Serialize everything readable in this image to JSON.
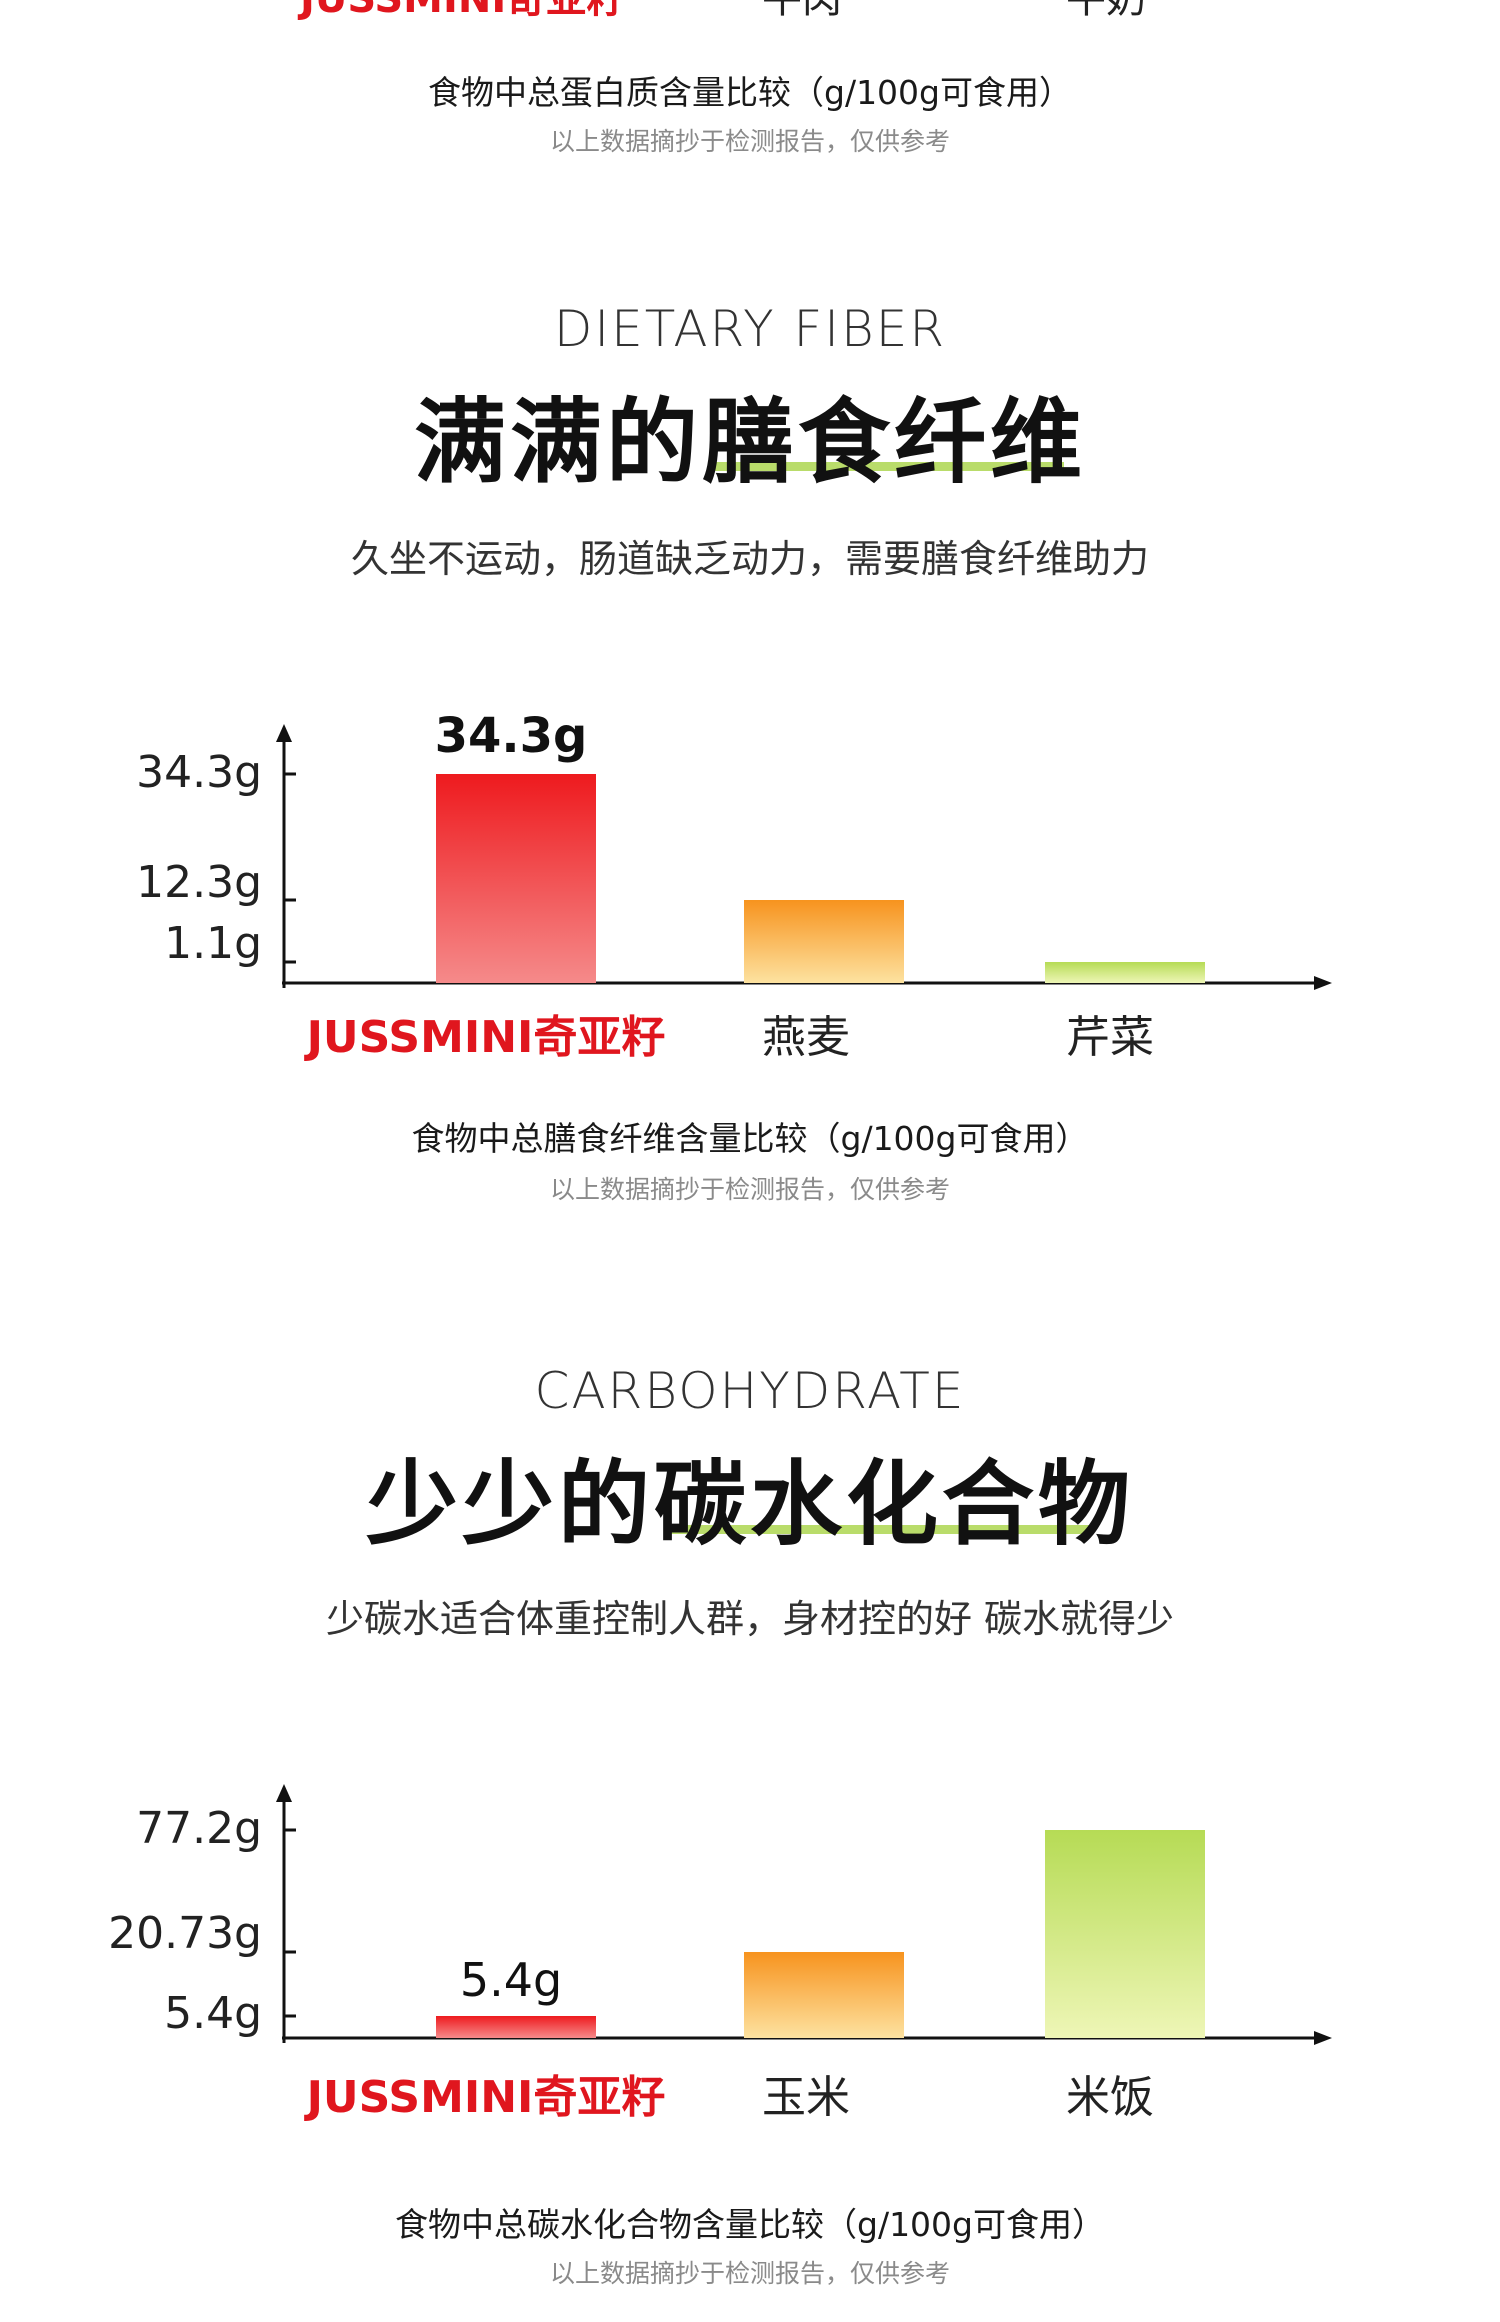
{
  "top_section": {
    "category_labels": [
      "JUSSMINI奇亚籽",
      "牛肉",
      "牛奶"
    ],
    "caption": "食物中总蛋白质含量比较（g/100g可食用）",
    "note": "以上数据摘抄于检测报告，仅供参考"
  },
  "fiber": {
    "eng_title": "DIETARY FIBER",
    "headline": "满满的膳食纤维",
    "subtitle": "久坐不运动，肠道缺乏动力，需要膳食纤维助力",
    "caption": "食物中总膳食纤维含量比较（g/100g可食用）",
    "note": "以上数据摘抄于检测报告，仅供参考"
  },
  "carb": {
    "eng_title": "CARBOHYDRATE",
    "headline": "少少的碳水化合物",
    "subtitle": "少碳水适合体重控制人群，身材控的好 碳水就得少",
    "caption": "食物中总碳水化合物含量比较（g/100g可食用）",
    "note": "以上数据摘抄于检测报告，仅供参考"
  },
  "colors": {
    "brand": "#e0161e",
    "highlight": "#b9dc6a",
    "bar_red_top": "#ee1a1e",
    "bar_red_bottom": "#f58a8a",
    "bar_orange_top": "#f7931e",
    "bar_orange_bottom": "#fde2a0",
    "bar_green_top": "#b6db55",
    "bar_green_bottom": "#eef6b6"
  },
  "chart_data": [
    {
      "type": "bar",
      "categories": [
        "JUSSMINI奇亚籽",
        "燕麦",
        "芹菜"
      ],
      "values": [
        34.3,
        12.3,
        1.1
      ],
      "tick_labels": [
        "34.3g",
        "12.3g",
        "1.1g"
      ],
      "data_labels": [
        "34.3g",
        "",
        ""
      ],
      "title": "食物中总膳食纤维含量比较（g/100g可食用）",
      "unit": "g",
      "grid": false
    },
    {
      "type": "bar",
      "categories": [
        "JUSSMINI奇亚籽",
        "玉米",
        "米饭"
      ],
      "values": [
        5.4,
        20.73,
        77.2
      ],
      "tick_labels": [
        "77.2g",
        "20.73g",
        "5.4g"
      ],
      "data_labels": [
        "5.4g",
        "",
        ""
      ],
      "title": "食物中总碳水化合物含量比较（g/100g可食用）",
      "unit": "g",
      "grid": false
    }
  ]
}
